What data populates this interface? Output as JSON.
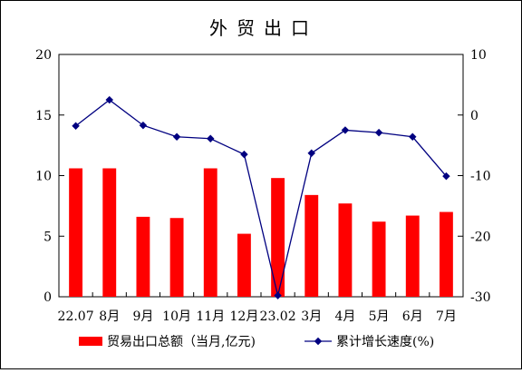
{
  "chart_data": {
    "type": "bar+line",
    "title": "外贸出口",
    "categories": [
      "22.07",
      "8月",
      "9月",
      "10月",
      "11月",
      "12月",
      "23.02",
      "3月",
      "4月",
      "5月",
      "6月",
      "7月"
    ],
    "series": [
      {
        "name": "贸易出口总额（当月,亿元)",
        "type": "bar",
        "axis": "left",
        "color": "#ff0000",
        "values": [
          10.6,
          10.6,
          6.6,
          6.5,
          10.6,
          5.2,
          9.8,
          8.4,
          7.7,
          6.2,
          6.7,
          7.0
        ]
      },
      {
        "name": "累计增长速度(%)",
        "type": "line",
        "axis": "right",
        "color": "#000080",
        "values": [
          -1.8,
          2.5,
          -1.7,
          -3.6,
          -3.9,
          -6.5,
          -29.8,
          -6.3,
          -2.5,
          -2.9,
          -3.6,
          -10.1
        ]
      }
    ],
    "y_left": {
      "ylim": [
        0,
        20
      ],
      "ticks": [
        "0",
        "5",
        "10",
        "15",
        "20"
      ]
    },
    "y_right": {
      "ylim": [
        -30,
        10
      ],
      "ticks": [
        "-30",
        "-20",
        "-10",
        "0",
        "10"
      ]
    },
    "grid": false,
    "legend": "bottom"
  }
}
